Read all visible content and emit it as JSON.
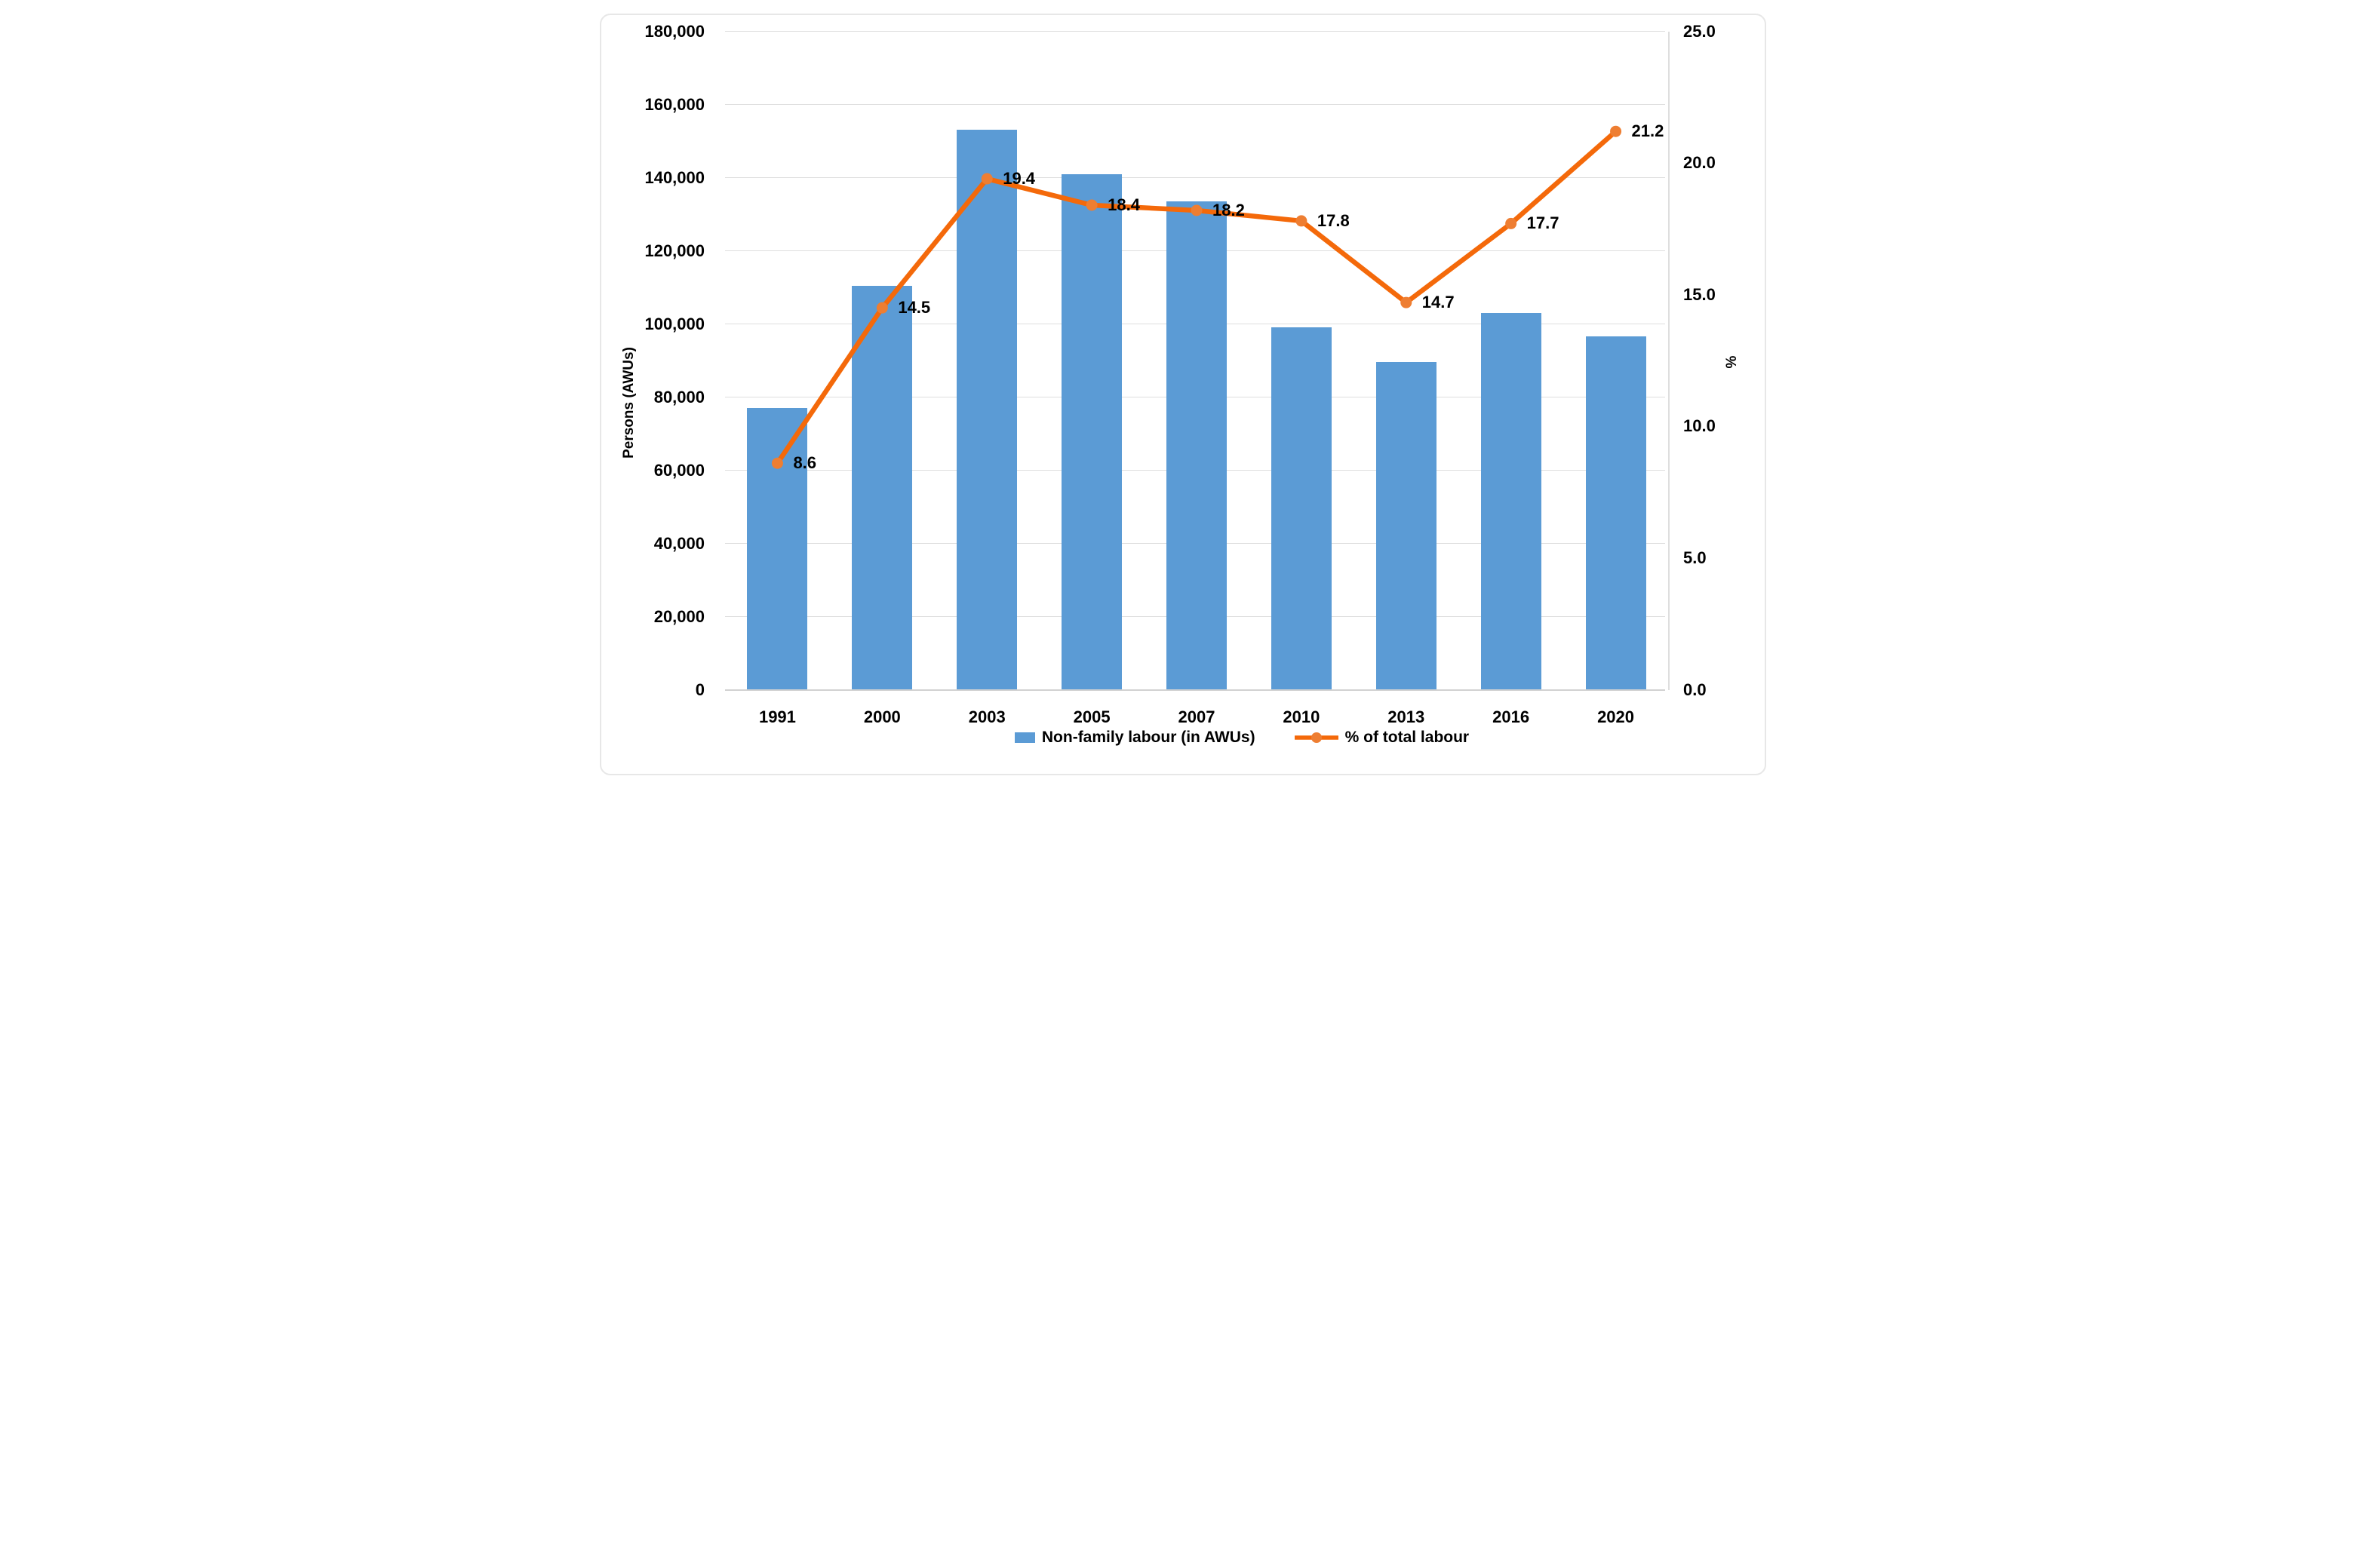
{
  "chart_data": {
    "type": "combo-bar-line",
    "categories": [
      "1991",
      "2000",
      "2003",
      "2005",
      "2007",
      "2010",
      "2013",
      "2016",
      "2020"
    ],
    "bar_series": {
      "name": "Non-family labour (in AWUs)",
      "axis": "left",
      "values": [
        77000,
        110500,
        153000,
        141000,
        133500,
        99000,
        89500,
        103000,
        96500
      ]
    },
    "line_series": {
      "name": "% of total labour",
      "axis": "right",
      "values": [
        8.6,
        14.5,
        19.4,
        18.4,
        18.2,
        17.8,
        14.7,
        17.7,
        21.2
      ],
      "data_labels": [
        "8.6",
        "14.5",
        "19.4",
        "18.4",
        "18.2",
        "17.8",
        "14.7",
        "17.7",
        "21.2"
      ]
    },
    "left_axis": {
      "title": "Persons (AWUs)",
      "min": 0,
      "max": 180000,
      "step": 20000,
      "tick_labels": [
        "180,000",
        "160,000",
        "140,000",
        "120,000",
        "100,000",
        "80,000",
        "60,000",
        "40,000",
        "20,000",
        "0"
      ]
    },
    "right_axis": {
      "title": "%",
      "min": 0,
      "max": 25,
      "step": 5,
      "tick_labels": [
        "25.0",
        "20.0",
        "15.0",
        "10.0",
        "5.0",
        "0.0"
      ]
    },
    "grid": "horizontal",
    "legend_position": "bottom-center"
  },
  "colors": {
    "bar": "#5B9BD5",
    "line": "#F4690A",
    "marker": "#EE7E32",
    "gridline": "#DEDEDE",
    "axis_line": "#D2D2D2",
    "text": "#000000",
    "frame_border": "#E7E7E7",
    "background": "#FFFFFF"
  }
}
